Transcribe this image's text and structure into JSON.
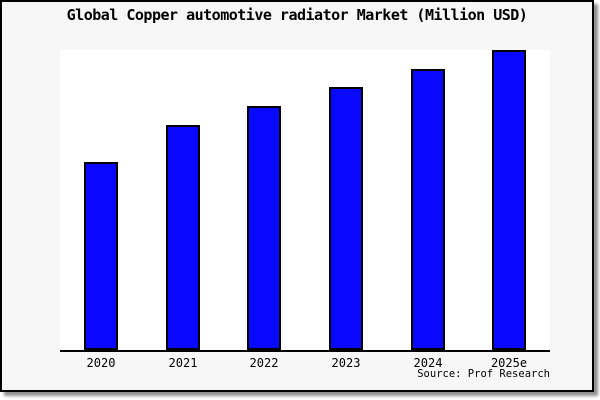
{
  "window": {
    "background_color": "#ffffff",
    "panel_background_color": "#f7f7f7",
    "panel_border_color": "#000000",
    "panel_shadow_color": "#8f8f8f"
  },
  "chart": {
    "title": "Global Copper automotive radiator Market (Million USD)",
    "source_note": "Source: Prof Research"
  },
  "chart_data": {
    "type": "bar",
    "title": "Global Copper automotive radiator Market (Million USD)",
    "categories": [
      "2020",
      "2021",
      "2022",
      "2023",
      "2024",
      "2025e"
    ],
    "series": [
      {
        "name": "Global Copper automotive radiator Market",
        "values_pct_of_max": [
          62.7,
          75.0,
          81.3,
          87.7,
          93.7,
          100.0
        ]
      }
    ],
    "value_unit": "percent of tallest bar (2025e); y-axis has no visible scale",
    "xlabel": "",
    "ylabel": "",
    "y_axis_labels_visible": false,
    "gridlines": false,
    "legend_position": "none",
    "bar_fill_color": "#0808ff",
    "bar_border_color": "#000000",
    "annotations": [
      "Source: Prof Research"
    ]
  }
}
